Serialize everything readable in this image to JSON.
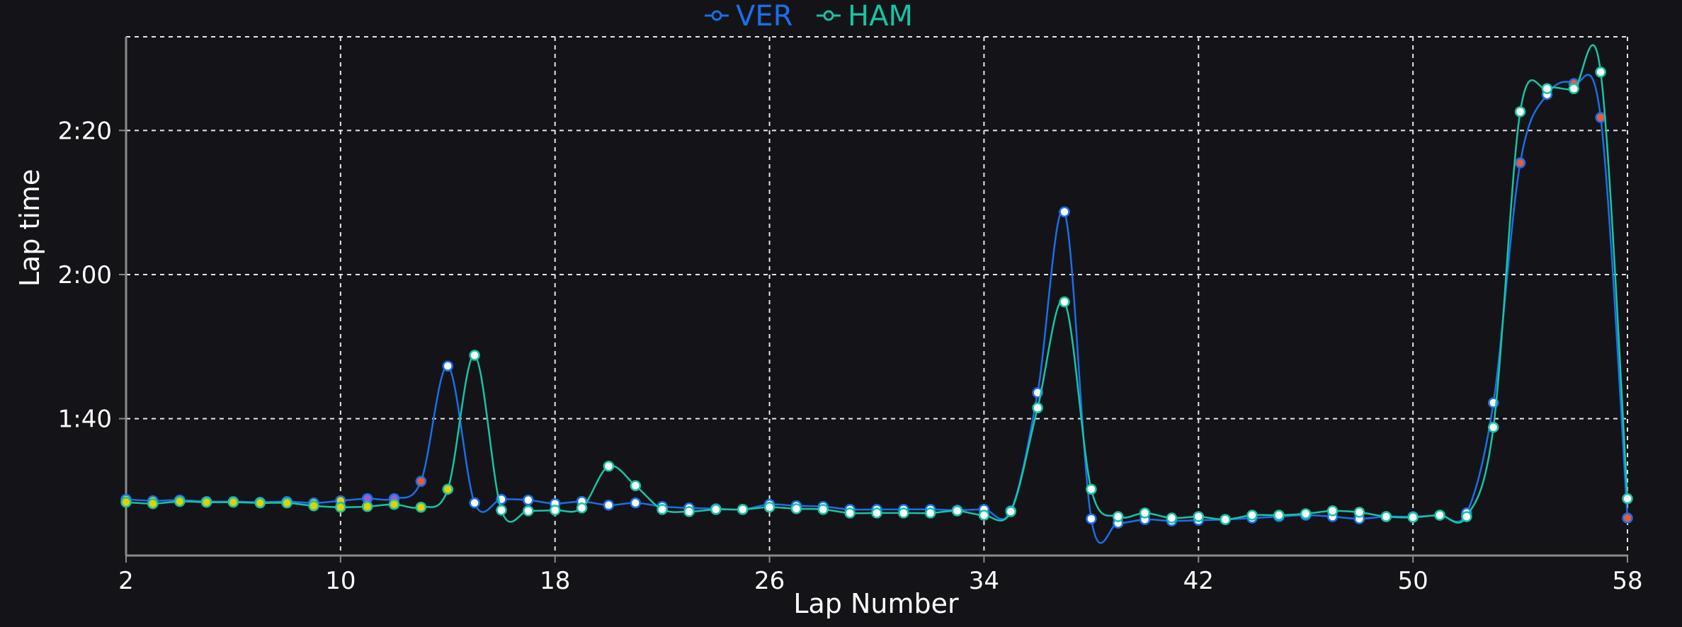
{
  "chart_data": {
    "type": "line",
    "xlabel": "Lap Number",
    "ylabel": "Lap time",
    "xlim": [
      2,
      58
    ],
    "xticks": [
      2,
      10,
      18,
      26,
      34,
      42,
      50,
      58
    ],
    "ylim_seconds": [
      81,
      153
    ],
    "yticks": [
      {
        "seconds": 100,
        "label": "1:40"
      },
      {
        "seconds": 120,
        "label": "2:00"
      },
      {
        "seconds": 140,
        "label": "2:20"
      }
    ],
    "grid": true,
    "legend_position": "top-center",
    "series": [
      {
        "name": "VER",
        "color": "#1a6fe8",
        "x": [
          2,
          3,
          4,
          5,
          6,
          7,
          8,
          9,
          10,
          11,
          12,
          13,
          14,
          15,
          16,
          17,
          18,
          19,
          20,
          21,
          22,
          23,
          24,
          25,
          26,
          27,
          28,
          29,
          30,
          31,
          32,
          33,
          34,
          35,
          36,
          37,
          38,
          39,
          40,
          41,
          42,
          43,
          44,
          45,
          46,
          47,
          48,
          49,
          50,
          51,
          52,
          53,
          54,
          55,
          56,
          57,
          58
        ],
        "y": [
          88.8,
          88.6,
          88.7,
          88.5,
          88.5,
          88.4,
          88.5,
          88.3,
          88.6,
          88.9,
          88.9,
          91.3,
          107.3,
          88.3,
          88.8,
          88.7,
          88.2,
          88.5,
          88.0,
          88.3,
          87.8,
          87.6,
          87.5,
          87.4,
          88.1,
          87.9,
          87.8,
          87.4,
          87.4,
          87.4,
          87.4,
          87.3,
          87.4,
          87.2,
          103.6,
          128.7,
          86.1,
          85.5,
          86.0,
          85.8,
          85.9,
          86.0,
          86.2,
          86.4,
          86.6,
          86.4,
          86.1,
          86.4,
          86.4,
          86.6,
          86.9,
          102.2,
          135.5,
          145.0,
          146.5,
          141.8,
          86.2
        ],
        "markers": [
          "#e3d100",
          "#e3d100",
          "#e3d100",
          "#e3d100",
          "#e3d100",
          "#e3d100",
          "#e3d100",
          "#e3d100",
          "#e3d100",
          "#a25bd1",
          "#a25bd1",
          "#ec5a3c",
          "#ffffff",
          "#ffffff",
          "#ffffff",
          "#ffffff",
          "#ffffff",
          "#ffffff",
          "#ffffff",
          "#ffffff",
          "#ffffff",
          "#ffffff",
          "#ffffff",
          "#ffffff",
          "#ffffff",
          "#ffffff",
          "#ffffff",
          "#ffffff",
          "#ffffff",
          "#ffffff",
          "#ffffff",
          "#ffffff",
          "#ffffff",
          "#ffffff",
          "#ffffff",
          "#ffffff",
          "#ffffff",
          "#ffffff",
          "#ffffff",
          "#ffffff",
          "#ffffff",
          "#ffffff",
          "#ffffff",
          "#ffffff",
          "#ffffff",
          "#ffffff",
          "#ffffff",
          "#ffffff",
          "#ffffff",
          "#ffffff",
          "#ffffff",
          "#ffffff",
          "#ec5a3c",
          "#ffffff",
          "#ec5a3c",
          "#ec5a3c",
          "#ec5a3c"
        ]
      },
      {
        "name": "HAM",
        "color": "#17c4a4",
        "x": [
          2,
          3,
          4,
          5,
          6,
          7,
          8,
          9,
          10,
          11,
          12,
          13,
          14,
          15,
          16,
          17,
          18,
          19,
          20,
          21,
          22,
          23,
          24,
          25,
          26,
          27,
          28,
          29,
          30,
          31,
          32,
          33,
          34,
          35,
          36,
          37,
          38,
          39,
          40,
          41,
          42,
          43,
          44,
          45,
          46,
          47,
          48,
          49,
          50,
          51,
          52,
          53,
          54,
          55,
          56,
          57,
          58
        ],
        "y": [
          88.4,
          88.2,
          88.5,
          88.4,
          88.4,
          88.3,
          88.3,
          87.9,
          87.7,
          87.8,
          88.1,
          87.7,
          90.2,
          108.8,
          87.3,
          87.2,
          87.3,
          87.6,
          93.4,
          90.7,
          87.4,
          87.1,
          87.4,
          87.4,
          87.7,
          87.5,
          87.4,
          86.9,
          86.9,
          86.9,
          86.9,
          87.2,
          86.6,
          87.1,
          101.5,
          116.2,
          90.2,
          86.4,
          86.9,
          86.2,
          86.4,
          86.0,
          86.6,
          86.6,
          86.8,
          87.2,
          87.0,
          86.4,
          86.3,
          86.6,
          86.4,
          98.8,
          142.6,
          145.8,
          145.8,
          148.1,
          88.9
        ],
        "markers": [
          "#e3d100",
          "#e3d100",
          "#e3d100",
          "#e3d100",
          "#e3d100",
          "#e3d100",
          "#e3d100",
          "#e3d100",
          "#e3d100",
          "#e3d100",
          "#e3d100",
          "#e3d100",
          "#e3d100",
          "#ffffff",
          "#ffffff",
          "#ffffff",
          "#ffffff",
          "#ffffff",
          "#ffffff",
          "#ffffff",
          "#ffffff",
          "#ffffff",
          "#ffffff",
          "#ffffff",
          "#ffffff",
          "#ffffff",
          "#ffffff",
          "#ffffff",
          "#ffffff",
          "#ffffff",
          "#ffffff",
          "#ffffff",
          "#ffffff",
          "#ffffff",
          "#ffffff",
          "#ffffff",
          "#ffffff",
          "#ffffff",
          "#ffffff",
          "#ffffff",
          "#ffffff",
          "#ffffff",
          "#ffffff",
          "#ffffff",
          "#ffffff",
          "#ffffff",
          "#ffffff",
          "#ffffff",
          "#ffffff",
          "#ffffff",
          "#ffffff",
          "#ffffff",
          "#ffffff",
          "#ffffff",
          "#ffffff",
          "#ffffff",
          "#ffffff"
        ]
      }
    ]
  },
  "colors": {
    "background": "#141418",
    "grid": "#e6e6e6",
    "axis": "#8a8a8a",
    "text": "#ffffff"
  }
}
